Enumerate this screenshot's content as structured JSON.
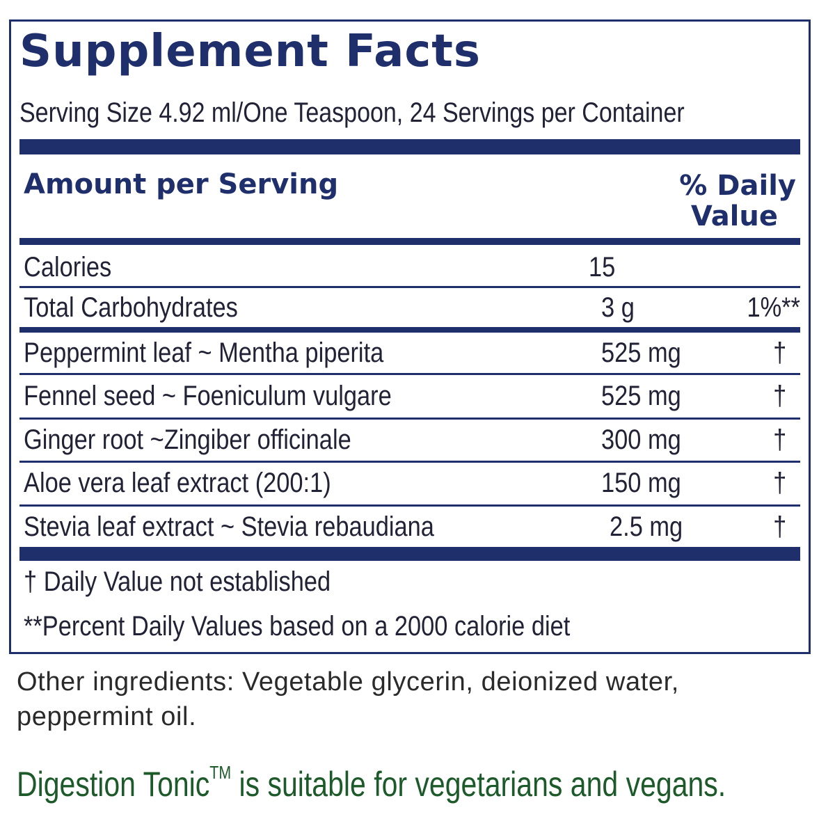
{
  "label": {
    "title": "Supplement Facts",
    "serving": "Serving Size 4.92 ml/One Teaspoon, 24 Servings per Container",
    "header_amount": "Amount per Serving",
    "header_dv_line1": "% Daily",
    "header_dv_line2": "Value",
    "rows": [
      {
        "name": "Calories",
        "amount": "15",
        "dv": ""
      },
      {
        "name": "Total Carbohydrates",
        "amount": "3 g",
        "dv": "1%**"
      },
      {
        "name": "Peppermint leaf ~ Mentha piperita",
        "amount": "525  mg",
        "dv": "†"
      },
      {
        "name": "Fennel seed ~ Foeniculum vulgare",
        "amount": "525  mg",
        "dv": "†"
      },
      {
        "name": "Ginger root ~Zingiber officinale",
        "amount": "300  mg",
        "dv": "†"
      },
      {
        "name": "Aloe vera leaf extract (200:1)",
        "amount": "150  mg",
        "dv": "†"
      },
      {
        "name": "Stevia leaf extract ~ Stevia rebaudiana",
        "amount": "2.5  mg",
        "dv": "†"
      }
    ],
    "footnote_dagger": "†  Daily Value not established",
    "footnote_percent": "**Percent Daily Values based on a 2000 calorie diet"
  },
  "other_ingredients": "Other ingredients: Vegetable glycerin, deionized water, peppermint oil.",
  "claim": {
    "product": "Digestion Tonic",
    "trademark": "TM",
    "text": " is suitable for vegetarians and vegans."
  },
  "colors": {
    "navy": "#1f2f6b",
    "green": "#1d5a2a"
  }
}
